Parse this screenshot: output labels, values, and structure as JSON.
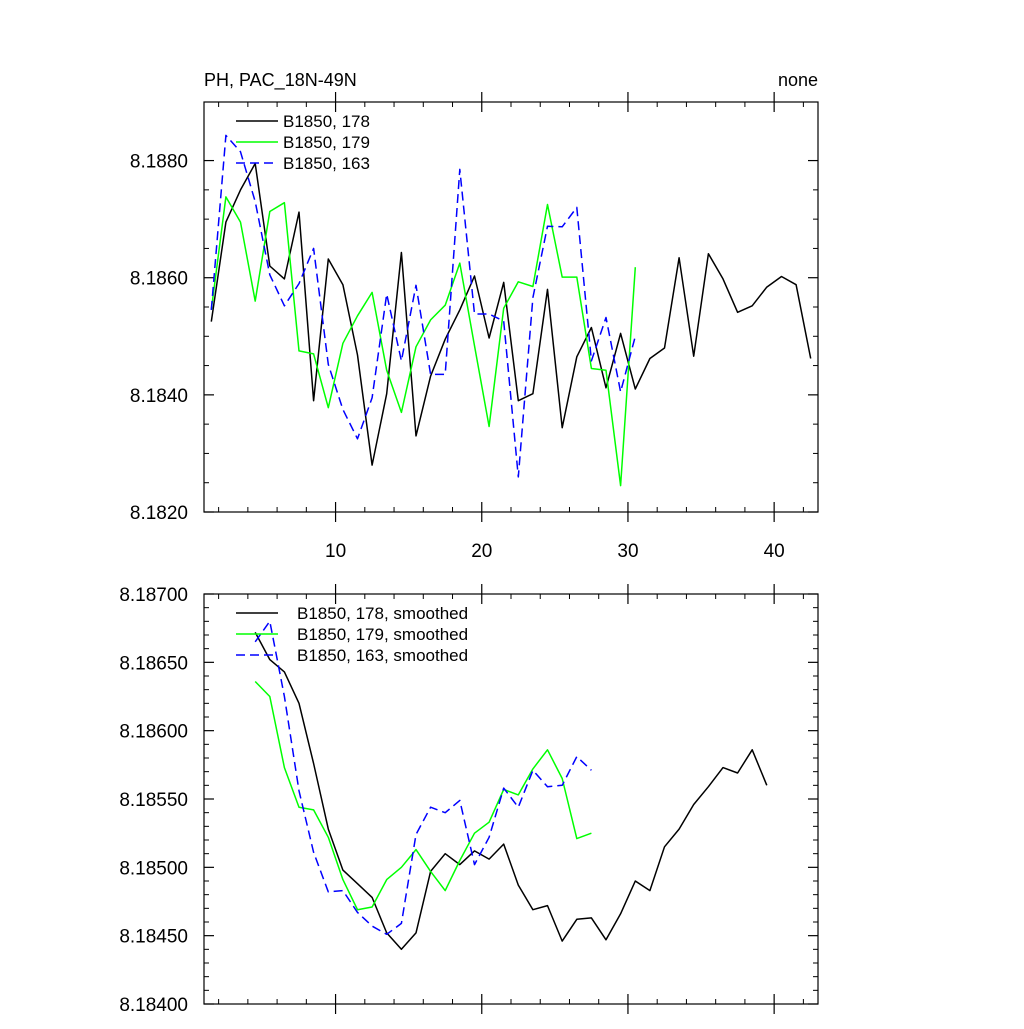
{
  "chart_data": [
    {
      "type": "line",
      "title": "PH, PAC_18N-49N",
      "subtitle_right": "none",
      "xlabel": "",
      "ylabel": "",
      "xlim": [
        1.0,
        43.0
      ],
      "ylim": [
        8.182,
        8.189
      ],
      "x_ticks": [
        10,
        20,
        30,
        40
      ],
      "x_tick_labels": [
        "10",
        "20",
        "30",
        "40"
      ],
      "y_ticks": [
        8.182,
        8.184,
        8.186,
        8.188
      ],
      "y_tick_labels": [
        "8.1820",
        "8.1840",
        "8.1860",
        "8.1880"
      ],
      "legend_position": "top-left",
      "series": [
        {
          "name": "B1850, 178",
          "color": "#000000",
          "dash": "solid",
          "x": [
            1.5,
            2.5,
            3.5,
            4.5,
            5.5,
            6.5,
            7.5,
            8.5,
            9.5,
            10.5,
            11.5,
            12.5,
            13.5,
            14.5,
            15.5,
            16.5,
            17.5,
            18.5,
            19.5,
            20.5,
            21.5,
            22.5,
            23.5,
            24.5,
            25.5,
            26.5,
            27.5,
            28.5,
            29.5,
            30.5,
            31.5,
            32.5,
            33.5,
            34.5,
            35.5,
            36.5,
            37.5,
            38.5,
            39.5,
            40.5,
            41.5,
            42.5
          ],
          "y": [
            8.18525,
            8.18695,
            8.1875,
            8.18795,
            8.1862,
            8.18598,
            8.18712,
            8.1839,
            8.18632,
            8.18588,
            8.18468,
            8.1828,
            8.18402,
            8.18643,
            8.1833,
            8.18432,
            8.18495,
            8.18545,
            8.18603,
            8.18497,
            8.18592,
            8.1839,
            8.18402,
            8.1858,
            8.18344,
            8.18465,
            8.18515,
            8.18412,
            8.18505,
            8.1841,
            8.18462,
            8.1848,
            8.18634,
            8.18466,
            8.18641,
            8.18598,
            8.18541,
            8.18552,
            8.18584,
            8.18602,
            8.18588,
            8.18462
          ]
        },
        {
          "name": "B1850, 179",
          "color": "#00ff00",
          "dash": "solid",
          "x": [
            1.5,
            2.5,
            3.5,
            4.5,
            5.5,
            6.5,
            7.5,
            8.5,
            9.5,
            10.5,
            11.5,
            12.5,
            13.5,
            14.5,
            15.5,
            16.5,
            17.5,
            18.5,
            19.5,
            20.5,
            21.5,
            22.5,
            23.5,
            24.5,
            25.5,
            26.5,
            27.5,
            28.5,
            29.5,
            30.5
          ],
          "y": [
            8.18545,
            8.18738,
            8.18695,
            8.1856,
            8.18713,
            8.18728,
            8.18475,
            8.1847,
            8.18378,
            8.18488,
            8.18535,
            8.18575,
            8.18442,
            8.1837,
            8.18482,
            8.18528,
            8.18553,
            8.18625,
            8.18484,
            8.18346,
            8.18548,
            8.18593,
            8.18585,
            8.18725,
            8.18601,
            8.18601,
            8.18445,
            8.18442,
            8.18245,
            8.18618
          ]
        },
        {
          "name": "B1850, 163",
          "color": "#0000ff",
          "dash": "dashed",
          "x": [
            1.5,
            2.5,
            3.5,
            4.5,
            5.5,
            6.5,
            7.5,
            8.5,
            9.5,
            10.5,
            11.5,
            12.5,
            13.5,
            14.5,
            15.5,
            16.5,
            17.5,
            18.5,
            19.5,
            20.5,
            21.5,
            22.5,
            23.5,
            24.5,
            25.5,
            26.5,
            27.5,
            28.5,
            29.5,
            30.5
          ],
          "y": [
            8.18545,
            8.18843,
            8.18815,
            8.1873,
            8.18605,
            8.18552,
            8.1859,
            8.1865,
            8.18452,
            8.18375,
            8.18325,
            8.18395,
            8.18572,
            8.18458,
            8.18587,
            8.18435,
            8.18435,
            8.18785,
            8.18538,
            8.18538,
            8.18526,
            8.1826,
            8.18566,
            8.18688,
            8.18687,
            8.1872,
            8.18458,
            8.18532,
            8.18405,
            8.185
          ]
        }
      ]
    },
    {
      "type": "line",
      "title": "",
      "xlabel": "",
      "ylabel": "",
      "xlim": [
        1.0,
        43.0
      ],
      "ylim": [
        8.184,
        8.187
      ],
      "x_ticks": [
        10,
        20,
        30,
        40
      ],
      "x_tick_labels": [
        "",
        "",
        "",
        ""
      ],
      "y_ticks": [
        8.184,
        8.1845,
        8.185,
        8.1855,
        8.186,
        8.1865,
        8.187
      ],
      "y_tick_labels": [
        "8.18400",
        "8.18450",
        "8.18500",
        "8.18550",
        "8.18600",
        "8.18650",
        "8.18700"
      ],
      "legend_position": "top-left",
      "series": [
        {
          "name": "B1850, 178, smoothed",
          "color": "#000000",
          "dash": "solid",
          "x": [
            4.5,
            5.5,
            6.5,
            7.5,
            8.5,
            9.5,
            10.5,
            11.5,
            12.5,
            13.5,
            14.5,
            15.5,
            16.5,
            17.5,
            18.5,
            19.5,
            20.5,
            21.5,
            22.5,
            23.5,
            24.5,
            25.5,
            26.5,
            27.5,
            28.5,
            29.5,
            30.5,
            31.5,
            32.5,
            33.5,
            34.5,
            35.5,
            36.5,
            37.5,
            38.5,
            39.5
          ],
          "y": [
            8.18672,
            8.18652,
            8.18643,
            8.1862,
            8.18576,
            8.18528,
            8.18498,
            8.18488,
            8.18478,
            8.18452,
            8.1844,
            8.18452,
            8.18497,
            8.1851,
            8.18502,
            8.18512,
            8.18506,
            8.18517,
            8.18487,
            8.18469,
            8.18472,
            8.18446,
            8.18462,
            8.18463,
            8.18447,
            8.18466,
            8.1849,
            8.18483,
            8.18515,
            8.18528,
            8.18546,
            8.18559,
            8.18573,
            8.18569,
            8.18586,
            8.1856
          ]
        },
        {
          "name": "B1850, 179, smoothed",
          "color": "#00ff00",
          "dash": "solid",
          "x": [
            4.5,
            5.5,
            6.5,
            7.5,
            8.5,
            9.5,
            10.5,
            11.5,
            12.5,
            13.5,
            14.5,
            15.5,
            16.5,
            17.5,
            18.5,
            19.5,
            20.5,
            21.5,
            22.5,
            23.5,
            24.5,
            25.5,
            26.5,
            27.5
          ],
          "y": [
            8.18636,
            8.18625,
            8.18573,
            8.18544,
            8.18542,
            8.18522,
            8.18491,
            8.18469,
            8.18471,
            8.18491,
            8.185,
            8.18513,
            8.18497,
            8.18483,
            8.18505,
            8.18525,
            8.18533,
            8.18557,
            8.18553,
            8.18572,
            8.18586,
            8.18565,
            8.18521,
            8.18525
          ]
        },
        {
          "name": "B1850, 163, smoothed",
          "color": "#0000ff",
          "dash": "dashed",
          "x": [
            4.5,
            5.5,
            6.5,
            7.5,
            8.5,
            9.5,
            10.5,
            11.5,
            12.5,
            13.5,
            14.5,
            15.5,
            16.5,
            17.5,
            18.5,
            19.5,
            20.5,
            21.5,
            22.5,
            23.5,
            24.5,
            25.5,
            26.5,
            27.5
          ],
          "y": [
            8.18665,
            8.1868,
            8.18625,
            8.18556,
            8.18511,
            8.18482,
            8.18483,
            8.18467,
            8.18457,
            8.18451,
            8.18459,
            8.18524,
            8.18544,
            8.1854,
            8.18549,
            8.18502,
            8.18522,
            8.18558,
            8.18544,
            8.18571,
            8.18559,
            8.1856,
            8.18581,
            8.18571
          ]
        }
      ]
    }
  ]
}
